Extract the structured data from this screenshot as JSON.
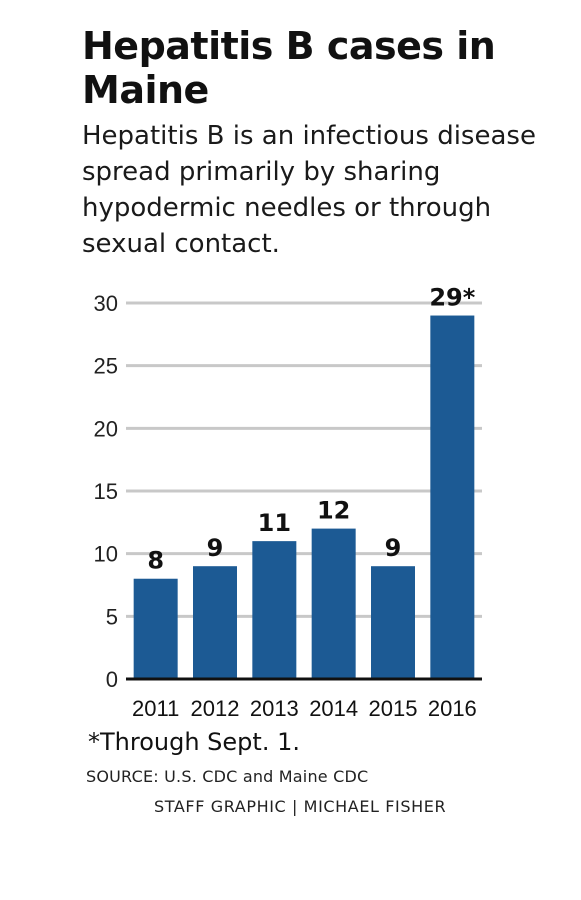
{
  "header": {
    "title": "Hepatitis B cases in Maine",
    "subtitle": "Hepatitis B is an infectious disease spread primarily by sharing hypodermic needles or through sexual contact."
  },
  "footer": {
    "footnote": "*Through Sept. 1.",
    "source": "SOURCE: U.S. CDC and Maine CDC",
    "credit": "STAFF GRAPHIC | MICHAEL FISHER"
  },
  "colors": {
    "bar": "#1c5a94",
    "grid": "#c8c8c8",
    "axis": "#111111"
  },
  "chart_data": {
    "type": "bar",
    "title": "Hepatitis B cases in Maine",
    "categories": [
      "2011",
      "2012",
      "2013",
      "2014",
      "2015",
      "2016"
    ],
    "values": [
      8,
      9,
      11,
      12,
      9,
      29
    ],
    "data_labels": [
      "8",
      "9",
      "11",
      "12",
      "9",
      "29*"
    ],
    "ylim": [
      0,
      30
    ],
    "yticks": [
      0,
      5,
      10,
      15,
      20,
      25,
      30
    ],
    "grid": true,
    "xlabel": "",
    "ylabel": ""
  }
}
